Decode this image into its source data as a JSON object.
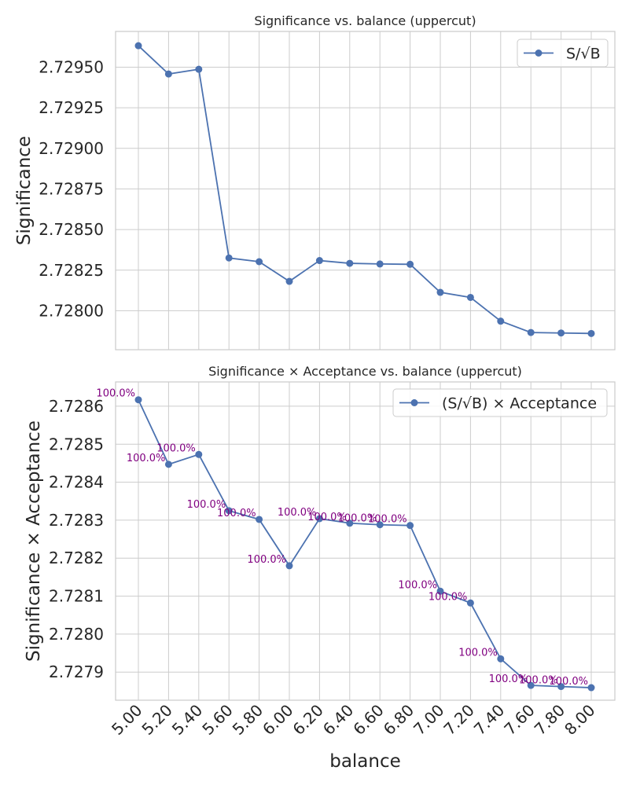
{
  "chart_data": [
    {
      "type": "line",
      "title": "Significance vs. balance (uppercut)",
      "xlabel": "",
      "ylabel": "Significance",
      "x": [
        5.0,
        5.2,
        5.4,
        5.6,
        5.8,
        6.0,
        6.2,
        6.4,
        6.6,
        6.8,
        7.0,
        7.2,
        7.4,
        7.6,
        7.8,
        8.0
      ],
      "ylim": [
        2.72776,
        2.72972
      ],
      "yticks": [
        2.728,
        2.72825,
        2.7285,
        2.72875,
        2.729,
        2.72925,
        2.7295
      ],
      "ytick_labels": [
        "2.72800",
        "2.72825",
        "2.72850",
        "2.72875",
        "2.72900",
        "2.72925",
        "2.72950"
      ],
      "series": [
        {
          "name": "S/√B",
          "color": "#4c72b0",
          "values": [
            2.729632,
            2.729458,
            2.729487,
            2.728325,
            2.728302,
            2.728181,
            2.728309,
            2.728292,
            2.728288,
            2.728286,
            2.728113,
            2.728082,
            2.727936,
            2.727866,
            2.727863,
            2.72786
          ]
        }
      ],
      "legend": "top-right",
      "grid": true
    },
    {
      "type": "line",
      "title": "Significance × Acceptance vs. balance (uppercut)",
      "xlabel": "balance",
      "ylabel": "Significance × Acceptance",
      "x": [
        5.0,
        5.2,
        5.4,
        5.6,
        5.8,
        6.0,
        6.2,
        6.4,
        6.6,
        6.8,
        7.0,
        7.2,
        7.4,
        7.6,
        7.8,
        8.0
      ],
      "xtick_labels": [
        "5.00",
        "5.20",
        "5.40",
        "5.60",
        "5.80",
        "6.00",
        "6.20",
        "6.40",
        "6.60",
        "6.80",
        "7.00",
        "7.20",
        "7.40",
        "7.60",
        "7.80",
        "8.00"
      ],
      "ylim": [
        2.727826,
        2.728664
      ],
      "yticks": [
        2.7279,
        2.728,
        2.7281,
        2.7282,
        2.7283,
        2.7284,
        2.7285,
        2.7286
      ],
      "ytick_labels": [
        "2.7279",
        "2.7280",
        "2.7281",
        "2.7282",
        "2.7283",
        "2.7284",
        "2.7285",
        "2.7286"
      ],
      "series": [
        {
          "name": "(S/√B) × Acceptance",
          "color": "#4c72b0",
          "values": [
            2.728617,
            2.728447,
            2.728473,
            2.728325,
            2.728302,
            2.72818,
            2.728304,
            2.728292,
            2.728288,
            2.728286,
            2.728113,
            2.728082,
            2.727935,
            2.727865,
            2.727862,
            2.727859
          ]
        }
      ],
      "annotations": [
        "100.0%",
        "100.0%",
        "100.0%",
        "100.0%",
        "100.0%",
        "100.0%",
        "100.0%",
        "100.0%",
        "100.0%",
        "100.0%",
        "100.0%",
        "100.0%",
        "100.0%",
        "100.0%",
        "100.0%",
        "100.0%"
      ],
      "annotation_color": "#800080",
      "legend": "top-right",
      "grid": true
    }
  ]
}
